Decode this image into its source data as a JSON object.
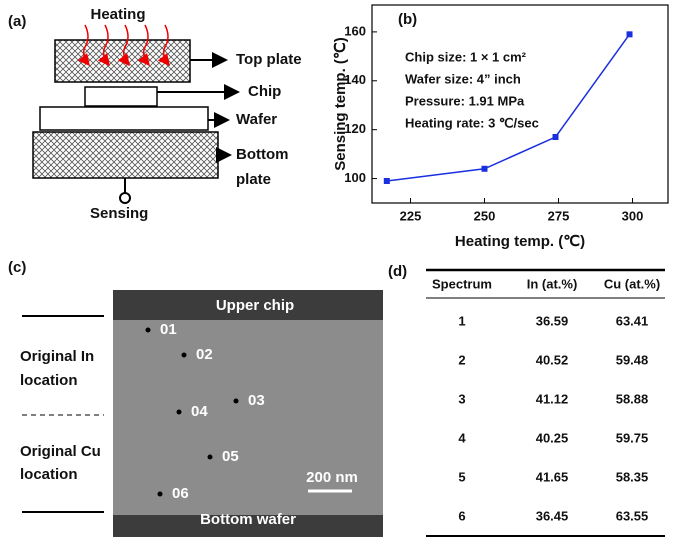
{
  "panel_a": {
    "label": "(a)",
    "heating": "Heating",
    "top_plate": "Top plate",
    "chip": "Chip",
    "wafer": "Wafer",
    "bottom_plate": [
      "Bottom",
      "plate"
    ],
    "sensing": "Sensing"
  },
  "chart_data": {
    "type": "line",
    "panel_label": "(b)",
    "x_label": "Heating temp. (℃)",
    "y_label": "Sensing temp. (℃)",
    "annotations": [
      "Chip size: 1 × 1 cm²",
      "Wafer size: 4” inch",
      "Pressure: 1.91 MPa",
      "Heating rate: 3 ℃/sec"
    ],
    "x": [
      217,
      250,
      274,
      299
    ],
    "series": [
      {
        "color": "#1a2fe0",
        "values": [
          99,
          104,
          117,
          159
        ]
      }
    ],
    "xlim": [
      212,
      312
    ],
    "ylim": [
      90,
      171
    ],
    "xticks": [
      225,
      250,
      275,
      300
    ],
    "yticks": [
      100,
      120,
      140,
      160
    ]
  },
  "panel_c": {
    "label": "(c)",
    "upper": "Upper chip",
    "lower": "Bottom wafer",
    "scale": "200 nm",
    "original_in": [
      "Original In",
      "location"
    ],
    "original_cu": [
      "Original Cu",
      "location"
    ],
    "points": [
      "01",
      "02",
      "03",
      "04",
      "05",
      "06"
    ]
  },
  "panel_d": {
    "label": "(d)",
    "header": [
      "Spectrum",
      "In (at.%)",
      "Cu (at.%)"
    ],
    "rows": [
      [
        "1",
        "36.59",
        "63.41"
      ],
      [
        "2",
        "40.52",
        "59.48"
      ],
      [
        "3",
        "41.12",
        "58.88"
      ],
      [
        "4",
        "40.25",
        "59.75"
      ],
      [
        "5",
        "41.65",
        "58.35"
      ],
      [
        "6",
        "36.45",
        "63.55"
      ]
    ]
  }
}
